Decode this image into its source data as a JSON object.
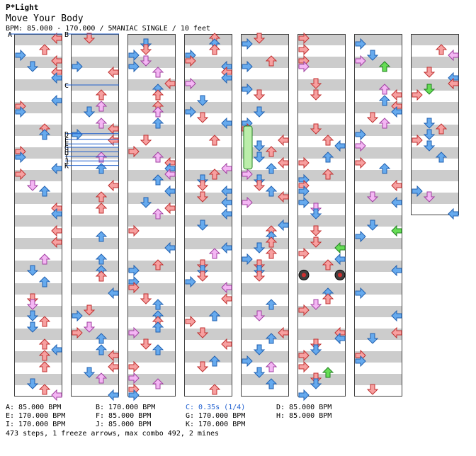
{
  "header": {
    "site": "P*Light",
    "song": "Move Your Body",
    "meta": "BPM: 85.000 - 170.000 / 5MANIAC SINGLE / 10 feet"
  },
  "chart": {
    "columns": 8,
    "measures_per_column": 8,
    "total_measures": 60,
    "colors": {
      "shade": "#cccccc",
      "border": "#404040",
      "red": "#f7a0a0",
      "red_edge": "#c03030",
      "blue": "#66aaee",
      "blue_edge": "#2060b0",
      "pink": "#f4b6f4",
      "pink_edge": "#a040a0",
      "green": "#66dd55",
      "green_edge": "#208020",
      "yellow": "#f0f040",
      "yellow_edge": "#a0a000",
      "marker_line": "#1f5fcc"
    },
    "markers": [
      {
        "label": "A",
        "measure": 0,
        "beat": 0
      },
      {
        "label": "B",
        "measure": 8,
        "beat": 0
      },
      {
        "label": "C",
        "measure": 9,
        "beat": 0.5
      },
      {
        "label": "D",
        "measure": 10,
        "beat": 0.8
      },
      {
        "label": "E",
        "measure": 10,
        "beat": 1.3
      },
      {
        "label": "F",
        "measure": 10,
        "beat": 1.7
      },
      {
        "label": "G",
        "measure": 10,
        "beat": 2.0
      },
      {
        "label": "H",
        "measure": 10,
        "beat": 2.4
      },
      {
        "label": "I",
        "measure": 10,
        "beat": 2.8
      },
      {
        "label": "J",
        "measure": 10,
        "beat": 3.2
      },
      {
        "label": "K",
        "measure": 10,
        "beat": 3.6
      }
    ],
    "freeze": {
      "measure": 34,
      "beat": 0,
      "length_beats": 3.8,
      "lane": 0
    },
    "mines": [
      {
        "measure": 45,
        "beat": 0.9,
        "lane": 0
      },
      {
        "measure": 45,
        "beat": 0.9,
        "lane": 3
      }
    ],
    "seed": 473
  },
  "legend": [
    {
      "text": "A: 85.000 BPM",
      "kind": "bpm"
    },
    {
      "text": "B: 170.000 BPM",
      "kind": "bpm"
    },
    {
      "text": "C: 0.35s (1/4)",
      "kind": "stop"
    },
    {
      "text": "D: 85.000 BPM",
      "kind": "bpm"
    },
    {
      "text": "E: 170.000 BPM",
      "kind": "bpm"
    },
    {
      "text": "F: 85.000 BPM",
      "kind": "bpm"
    },
    {
      "text": "G: 170.000 BPM",
      "kind": "bpm"
    },
    {
      "text": "H: 85.000 BPM",
      "kind": "bpm"
    },
    {
      "text": "I: 170.000 BPM",
      "kind": "bpm"
    },
    {
      "text": "J: 85.000 BPM",
      "kind": "bpm"
    },
    {
      "text": "K: 170.000 BPM",
      "kind": "bpm"
    }
  ],
  "summary": "473 steps, 1 freeze arrows, max combo 492, 2 mines"
}
